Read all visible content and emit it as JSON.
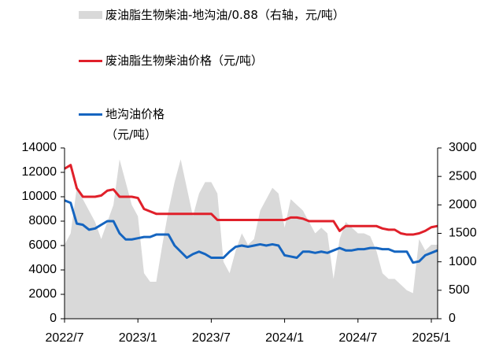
{
  "chart_data": {
    "type": "line",
    "categories": [
      "2022/7",
      null,
      null,
      null,
      null,
      null,
      null,
      null,
      null,
      null,
      null,
      null,
      "2023/1",
      null,
      null,
      null,
      null,
      null,
      null,
      null,
      null,
      null,
      null,
      null,
      "2023/7",
      null,
      null,
      null,
      null,
      null,
      null,
      null,
      null,
      null,
      null,
      null,
      "2024/1",
      null,
      null,
      null,
      null,
      null,
      null,
      null,
      null,
      null,
      null,
      null,
      "2024/7",
      null,
      null,
      null,
      null,
      null,
      null,
      null,
      null,
      null,
      null,
      null,
      "2025/1",
      null
    ],
    "series": [
      {
        "name": "废油脂生物柴油-地沟油/0.88（右轴，元/吨）",
        "color": "#d9d9d9",
        "axis": "y2",
        "kind": "area",
        "values": [
          1300,
          1500,
          2300,
          2100,
          1900,
          1700,
          1400,
          1700,
          2000,
          2800,
          2400,
          2000,
          1800,
          800,
          650,
          650,
          1300,
          1900,
          2400,
          2800,
          2300,
          1800,
          2200,
          2400,
          2400,
          2200,
          1000,
          800,
          1200,
          1500,
          1300,
          1400,
          1900,
          2100,
          2300,
          2200,
          1600,
          2100,
          2000,
          1900,
          1700,
          1500,
          1600,
          1500,
          700,
          1400,
          1700,
          1600,
          1500,
          1500,
          1450,
          1200,
          800,
          700,
          700,
          600,
          500,
          450,
          1400,
          1200,
          1300,
          1300
        ]
      },
      {
        "name": "废油脂生物柴油价格（元/吨）",
        "color": "#e0202a",
        "values": [
          12300,
          12600,
          10700,
          10000,
          10000,
          10000,
          10100,
          10500,
          10600,
          10000,
          10000,
          10000,
          9900,
          9000,
          8800,
          8600,
          8600,
          8600,
          8600,
          8600,
          8600,
          8600,
          8600,
          8600,
          8600,
          8100,
          8100,
          8100,
          8100,
          8100,
          8100,
          8100,
          8100,
          8100,
          8100,
          8100,
          8100,
          8300,
          8300,
          8200,
          8000,
          8000,
          8000,
          8000,
          8000,
          7200,
          7600,
          7600,
          7600,
          7600,
          7600,
          7600,
          7400,
          7300,
          7300,
          7000,
          6900,
          6900,
          7000,
          7200,
          7500,
          7600
        ]
      },
      {
        "name": "地沟油价格（元/吨）",
        "color": "#1565c0",
        "values": [
          9700,
          9500,
          7800,
          7700,
          7300,
          7400,
          7700,
          8000,
          8000,
          7000,
          6500,
          6500,
          6600,
          6700,
          6700,
          6900,
          6900,
          6900,
          6000,
          5500,
          5000,
          5300,
          5500,
          5300,
          5000,
          5000,
          5000,
          5500,
          5900,
          6000,
          5900,
          6000,
          6100,
          6000,
          6100,
          6000,
          5200,
          5100,
          5000,
          5500,
          5500,
          5400,
          5500,
          5400,
          5600,
          5800,
          5600,
          5600,
          5700,
          5700,
          5800,
          5800,
          5700,
          5700,
          5500,
          5500,
          5500,
          4600,
          4700,
          5200,
          5400,
          5600
        ]
      }
    ],
    "ylim": [
      0,
      14000
    ],
    "yticks": [
      0,
      2000,
      4000,
      6000,
      8000,
      10000,
      12000,
      14000
    ],
    "y2lim": [
      0,
      3000
    ],
    "y2ticks": [
      0,
      500,
      1000,
      1500,
      2000,
      2500,
      3000
    ]
  }
}
